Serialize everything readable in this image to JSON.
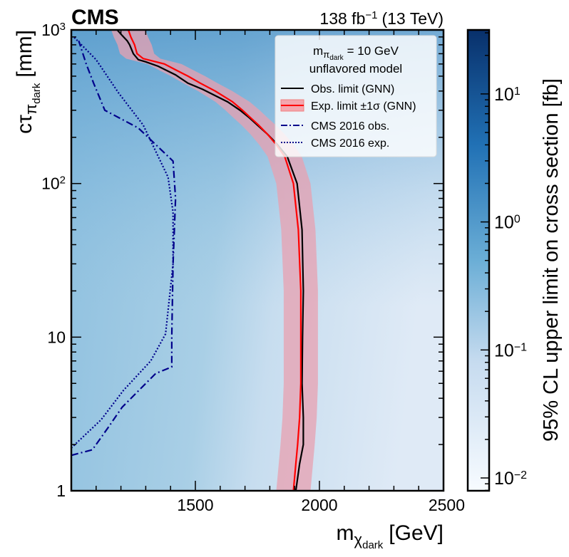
{
  "chart_data": {
    "type": "heatmap",
    "experiment_label": "CMS",
    "luminosity_label": "138 fb",
    "luminosity_exp": "−1",
    "energy_label": "(13 TeV)",
    "xlabel": "m",
    "xlabel_sub": "χ",
    "xlabel_subsub": "dark",
    "xlabel_unit": "[GeV]",
    "ylabel": "cτ",
    "ylabel_sub": "π",
    "ylabel_subsub": "dark",
    "ylabel_unit": "[mm]",
    "xlim": [
      1000,
      2500
    ],
    "ylim_log10": [
      0,
      3
    ],
    "x_ticks": [
      {
        "value": 1500,
        "label": "1500"
      },
      {
        "value": 2000,
        "label": "2000"
      },
      {
        "value": 2500,
        "label": "2500"
      }
    ],
    "y_ticks": [
      {
        "exp": 0,
        "label": "1"
      },
      {
        "exp": 1,
        "label": "10"
      },
      {
        "exp": 2,
        "label": "10",
        "sup": "2"
      },
      {
        "exp": 3,
        "label": "10",
        "sup": "3"
      }
    ],
    "colorbar": {
      "label": "95% CL upper limit on cross section [fb]",
      "range_log10": [
        -2.1,
        1.5
      ],
      "ticks": [
        {
          "exp": 1,
          "label": "10",
          "sup": "1"
        },
        {
          "exp": 0,
          "label": "10",
          "sup": "0"
        },
        {
          "exp": -1,
          "label": "10",
          "sup": "−1"
        },
        {
          "exp": -2,
          "label": "10",
          "sup": "−2"
        }
      ],
      "colors": [
        "#f7fbff",
        "#c6dbef",
        "#6baed6",
        "#2171b5",
        "#08306b"
      ]
    },
    "legend": {
      "position": "top-right",
      "header_line1": "m",
      "header_sub": "π",
      "header_subsub": "dark",
      "header_value": "= 10 GeV",
      "header_line2": "unflavored model",
      "entries": [
        {
          "label": "Obs. limit (GNN)",
          "color": "#000000",
          "style": "solid"
        },
        {
          "label": "Exp. limit ±1σ (GNN)",
          "color": "#ff0000",
          "style": "band"
        },
        {
          "label": "CMS 2016 obs.",
          "color": "#00008b",
          "style": "dashdot"
        },
        {
          "label": "CMS 2016 exp.",
          "color": "#00008b",
          "style": "dotted"
        }
      ]
    },
    "series": [
      {
        "name": "Obs. limit (GNN)",
        "color": "#000000",
        "points": [
          [
            1905,
            1
          ],
          [
            1920,
            1.5
          ],
          [
            1935,
            2
          ],
          [
            1935,
            3
          ],
          [
            1930,
            5
          ],
          [
            1932,
            10
          ],
          [
            1935,
            20
          ],
          [
            1930,
            50
          ],
          [
            1910,
            100
          ],
          [
            1870,
            150
          ],
          [
            1830,
            180
          ],
          [
            1790,
            210
          ],
          [
            1750,
            240
          ],
          [
            1715,
            270
          ],
          [
            1680,
            300
          ],
          [
            1630,
            340
          ],
          [
            1530,
            410
          ],
          [
            1470,
            450
          ],
          [
            1420,
            510
          ],
          [
            1350,
            580
          ],
          [
            1300,
            620
          ],
          [
            1270,
            640
          ],
          [
            1250,
            700
          ],
          [
            1235,
            800
          ],
          [
            1225,
            850
          ],
          [
            1205,
            920
          ],
          [
            1185,
            1000
          ]
        ]
      },
      {
        "name": "Exp. limit (GNN)",
        "color": "#ff0000",
        "points": [
          [
            1895,
            1
          ],
          [
            1905,
            1.5
          ],
          [
            1912,
            2
          ],
          [
            1920,
            3
          ],
          [
            1925,
            5
          ],
          [
            1925,
            10
          ],
          [
            1925,
            20
          ],
          [
            1915,
            50
          ],
          [
            1895,
            100
          ],
          [
            1860,
            150
          ],
          [
            1825,
            180
          ],
          [
            1790,
            210
          ],
          [
            1755,
            240
          ],
          [
            1720,
            270
          ],
          [
            1690,
            300
          ],
          [
            1650,
            340
          ],
          [
            1580,
            400
          ],
          [
            1520,
            450
          ],
          [
            1470,
            500
          ],
          [
            1420,
            550
          ],
          [
            1375,
            600
          ],
          [
            1290,
            650
          ],
          [
            1265,
            700
          ],
          [
            1255,
            800
          ],
          [
            1240,
            900
          ],
          [
            1230,
            1000
          ]
        ]
      },
      {
        "name": "CMS 2016 obs.",
        "color": "#00008b",
        "style": "dashdot",
        "points": [
          [
            1000,
            1.7
          ],
          [
            1085,
            1.85
          ],
          [
            1150,
            2.6
          ],
          [
            1205,
            3.5
          ],
          [
            1340,
            5.8
          ],
          [
            1405,
            6.4
          ],
          [
            1405,
            10
          ],
          [
            1410,
            30
          ],
          [
            1420,
            80
          ],
          [
            1410,
            140
          ],
          [
            1270,
            230
          ],
          [
            1135,
            300
          ],
          [
            1090,
            450
          ],
          [
            1060,
            600
          ],
          [
            1030,
            850
          ]
        ]
      },
      {
        "name": "CMS 2016 exp.",
        "color": "#00008b",
        "style": "dotted",
        "points": [
          [
            1000,
            1.9
          ],
          [
            1120,
            2.9
          ],
          [
            1210,
            4.5
          ],
          [
            1320,
            7
          ],
          [
            1380,
            10.5
          ],
          [
            1410,
            30
          ],
          [
            1410,
            65
          ],
          [
            1390,
            110
          ],
          [
            1290,
            240
          ],
          [
            1190,
            390
          ],
          [
            1100,
            640
          ],
          [
            1010,
            900
          ]
        ]
      }
    ]
  }
}
